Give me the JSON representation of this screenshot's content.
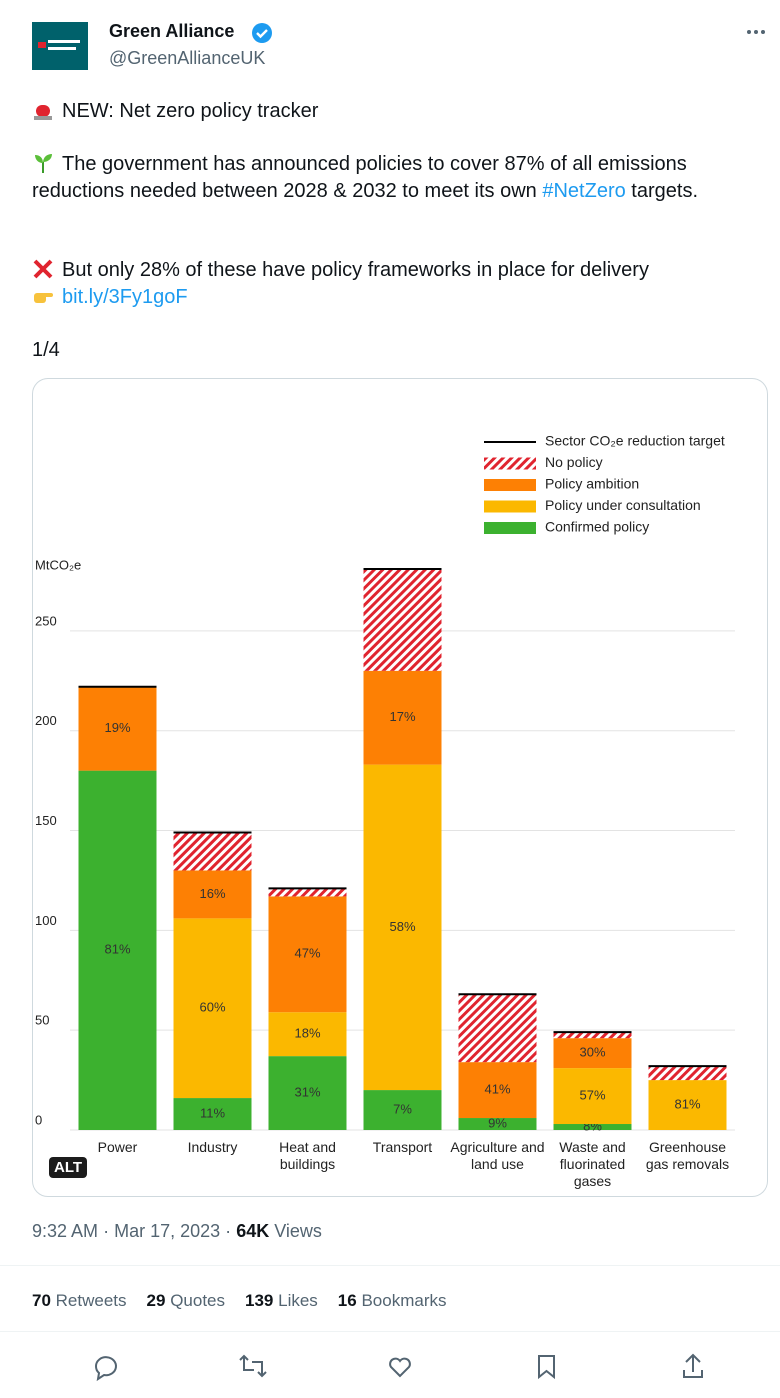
{
  "author": {
    "name": "Green Alliance",
    "handle": "@GreenAllianceUK"
  },
  "tweet": {
    "headline": "NEW: Net zero policy tracker",
    "para2": "The government has announced policies to cover 87% of all emissions reductions needed between 2028 & 2032 to meet its own",
    "hashtag": "#NetZero",
    "para2_end": "targets.",
    "para3": "But only 28% of these have policy frameworks in place for delivery",
    "link": "bit.ly/3Fy1goF",
    "thread": "1/4"
  },
  "chart_data": {
    "type": "stacked_bar",
    "y_label": "MtCO₂e",
    "categories": [
      "Power",
      "Industry",
      "Heat and buildings",
      "Transport",
      "Agriculture and land use",
      "Waste and fluorinated gases",
      "Greenhouse gas removals"
    ],
    "series": [
      {
        "name": "Confirmed policy",
        "color": "#3cb12f",
        "values": [
          180,
          16,
          37,
          20,
          6,
          3,
          0
        ],
        "percent_labels": [
          "81%",
          "11%",
          "31%",
          "7%",
          "9%",
          "8%",
          null
        ]
      },
      {
        "name": "Policy under consultation",
        "color": "#fbb800",
        "values": [
          0,
          90,
          22,
          163,
          0,
          28,
          25
        ],
        "percent_labels": [
          null,
          "60%",
          "18%",
          "58%",
          null,
          "57%",
          "81%"
        ]
      },
      {
        "name": "Policy ambition",
        "color": "#fd8004",
        "values": [
          42,
          24,
          58,
          47,
          28,
          15,
          0
        ],
        "percent_labels": [
          "19%",
          "16%",
          "47%",
          "17%",
          "41%",
          "30%",
          null
        ]
      },
      {
        "name": "No policy",
        "color": "#e0242f",
        "pattern": "hatch",
        "values": [
          0,
          19,
          4,
          51,
          34,
          3,
          7
        ]
      }
    ],
    "target": {
      "name": "Sector CO₂e reduction target",
      "color": "#000000",
      "values": [
        222,
        149,
        121,
        281,
        68,
        49,
        32
      ]
    },
    "ylim": [
      0,
      290
    ],
    "yticks": [
      0,
      50,
      100,
      150,
      200,
      250
    ],
    "grid": true
  },
  "alt_badge": "ALT",
  "meta": {
    "time": "9:32 AM",
    "separator": "·",
    "date": "Mar 17, 2023",
    "views": "64K",
    "views_label": "Views"
  },
  "stats": [
    {
      "count": 70,
      "label": "Retweets"
    },
    {
      "count": 29,
      "label": "Quotes"
    },
    {
      "count": 139,
      "label": "Likes"
    },
    {
      "count": 16,
      "label": "Bookmarks"
    }
  ]
}
